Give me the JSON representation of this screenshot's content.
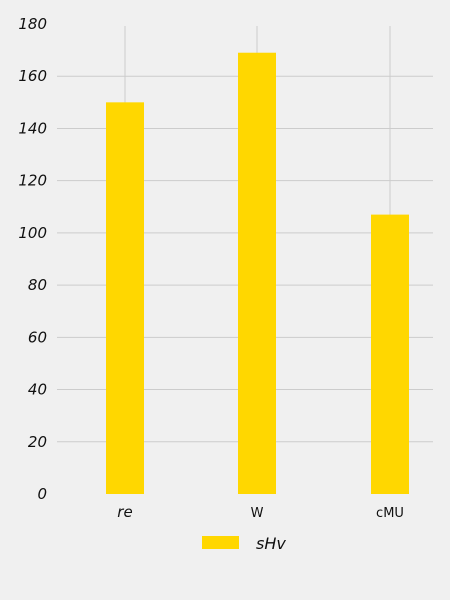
{
  "chart_data": {
    "type": "bar",
    "categories": [
      "re",
      "W",
      "cMU"
    ],
    "series": [
      {
        "name": "sHv",
        "values": [
          150,
          169,
          107
        ],
        "color": "#ffd700"
      }
    ],
    "ylim": [
      0,
      180
    ],
    "yticks": [
      0,
      20,
      40,
      60,
      80,
      100,
      120,
      140,
      160,
      180
    ],
    "grid": true,
    "grid_color": "#cccccc",
    "background": "#f0f0f0",
    "legend_position": "bottom-center"
  }
}
